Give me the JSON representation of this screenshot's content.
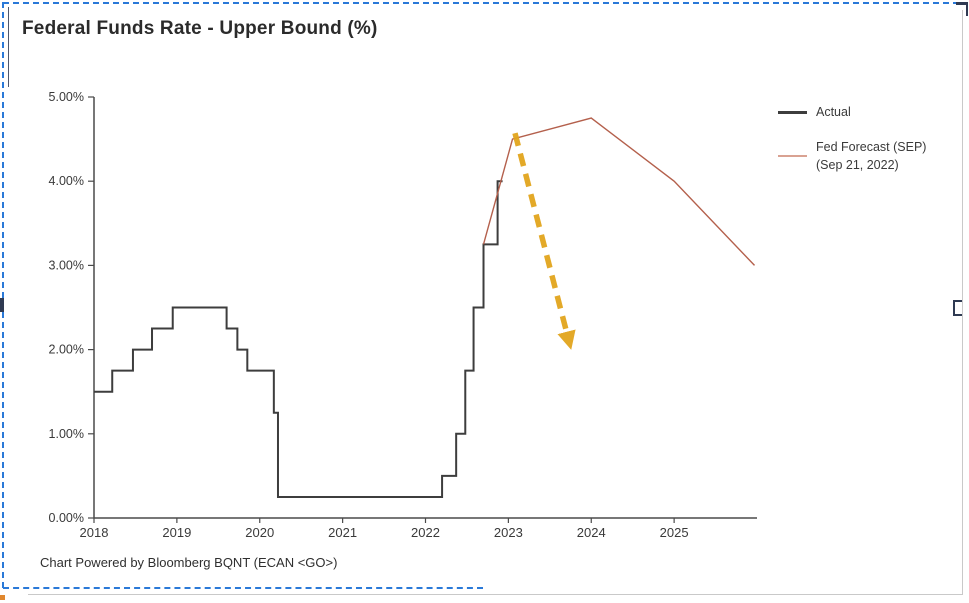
{
  "page": {
    "title": "Federal Funds Rate - Upper Bound (%)",
    "caption": "Chart Powered by Bloomberg BQNT (ECAN <GO>)"
  },
  "legend": {
    "items": [
      {
        "label": "Actual",
        "swatch_color": "#3d3d3d"
      },
      {
        "line1": "Fed Forecast (SEP)",
        "line2": "(Sep 21, 2022)",
        "swatch_color": "#d9a292"
      }
    ]
  },
  "colors": {
    "actual_line": "#3d3d3d",
    "forecast_line": "#b4604c",
    "arrow_gold": "#e2a51d",
    "axis": "#4a4a4a",
    "tick_text": "#3a3a3a",
    "marquee_blue": "#2a79d8",
    "frame_gray": "#c9c9c9",
    "handle_dark": "#2f3a52",
    "speck_orange": "#e0872e"
  },
  "chart_data": {
    "type": "line",
    "title": "Federal Funds Rate - Upper Bound (%)",
    "xlabel": "",
    "ylabel": "",
    "xlim": [
      2018,
      2026
    ],
    "ylim": [
      0,
      5
    ],
    "grid": false,
    "legend_position": "right",
    "y_ticks": [
      {
        "value": 0,
        "label": "0.00%"
      },
      {
        "value": 1,
        "label": "1.00%"
      },
      {
        "value": 2,
        "label": "2.00%"
      },
      {
        "value": 3,
        "label": "3.00%"
      },
      {
        "value": 4,
        "label": "4.00%"
      },
      {
        "value": 5,
        "label": "5.00%"
      }
    ],
    "x_ticks": [
      {
        "value": 2018,
        "label": "2018"
      },
      {
        "value": 2019,
        "label": "2019"
      },
      {
        "value": 2020,
        "label": "2020"
      },
      {
        "value": 2021,
        "label": "2021"
      },
      {
        "value": 2022,
        "label": "2022"
      },
      {
        "value": 2023,
        "label": "2023"
      },
      {
        "value": 2024,
        "label": "2024"
      },
      {
        "value": 2025,
        "label": "2025"
      }
    ],
    "series": [
      {
        "name": "Actual",
        "style": "step",
        "color": "#3d3d3d",
        "width": 2,
        "points": [
          [
            2018.0,
            1.5
          ],
          [
            2018.22,
            1.75
          ],
          [
            2018.47,
            2.0
          ],
          [
            2018.7,
            2.25
          ],
          [
            2018.95,
            2.5
          ],
          [
            2019.6,
            2.25
          ],
          [
            2019.73,
            2.0
          ],
          [
            2019.85,
            1.75
          ],
          [
            2020.17,
            1.25
          ],
          [
            2020.22,
            0.25
          ],
          [
            2022.2,
            0.5
          ],
          [
            2022.37,
            1.0
          ],
          [
            2022.48,
            1.75
          ],
          [
            2022.58,
            2.5
          ],
          [
            2022.7,
            3.25
          ],
          [
            2022.87,
            4.0
          ],
          [
            2022.93,
            4.0
          ]
        ]
      },
      {
        "name": "Fed Forecast (SEP) (Sep 21, 2022)",
        "style": "line",
        "color": "#b4604c",
        "width": 1.4,
        "points": [
          [
            2022.7,
            3.25
          ],
          [
            2023.05,
            4.5
          ],
          [
            2024.0,
            4.75
          ],
          [
            2025.0,
            4.0
          ],
          [
            2025.97,
            3.0
          ]
        ]
      }
    ],
    "annotation_arrow": {
      "description": "thick gold dashed arrow from forecast peak down to ~2%",
      "from": [
        2023.08,
        4.57
      ],
      "to": [
        2023.71,
        2.18
      ],
      "color": "#e2a51d",
      "style": "dashed"
    }
  }
}
